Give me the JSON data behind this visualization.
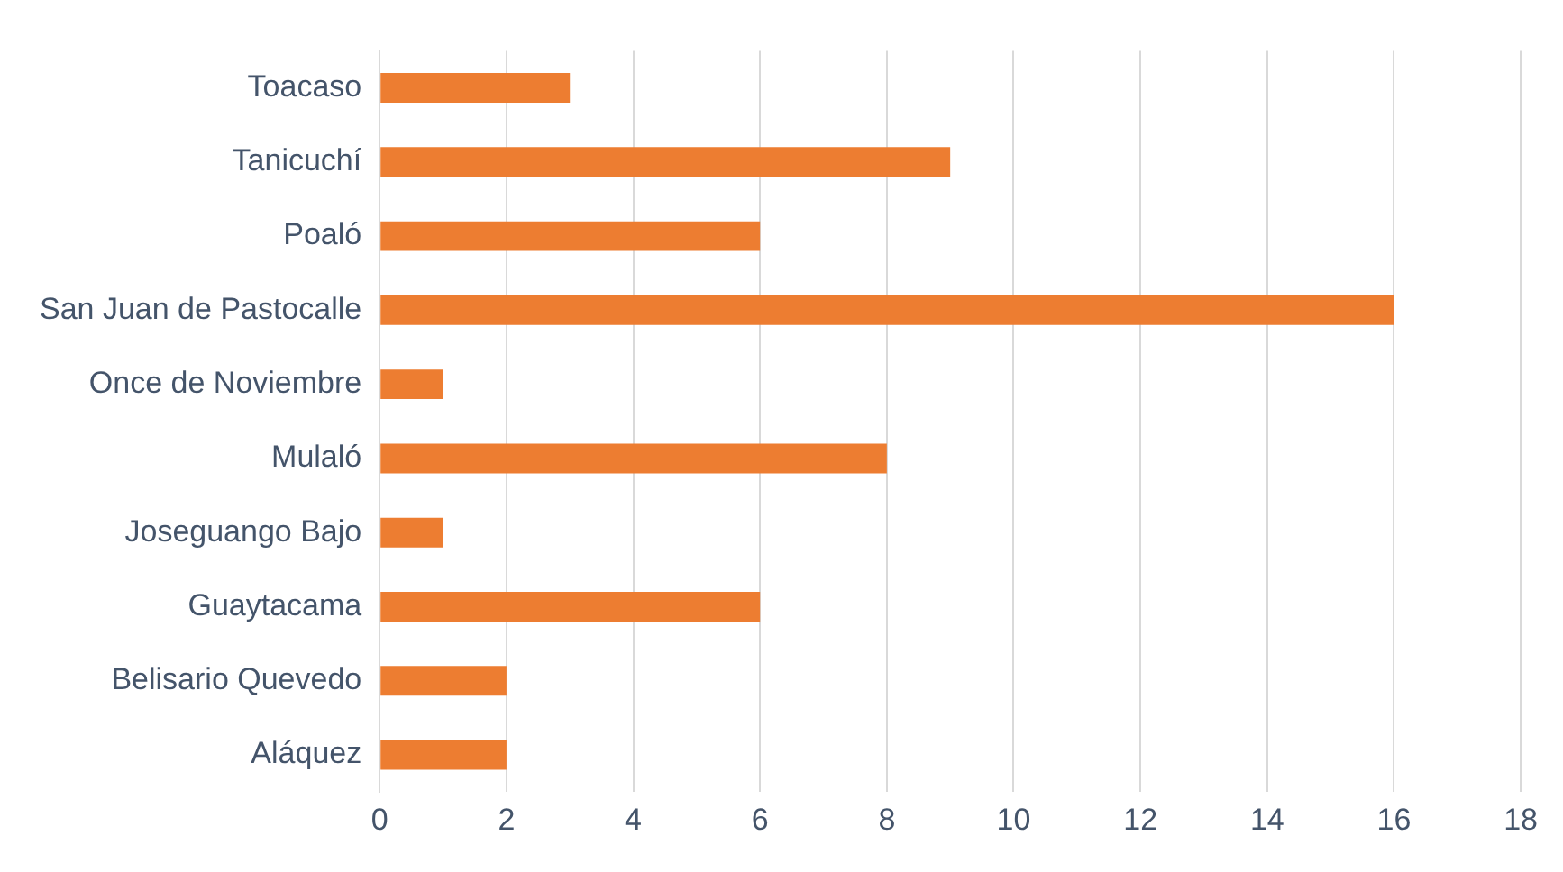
{
  "chart_data": {
    "type": "bar",
    "orientation": "horizontal",
    "categories": [
      "Toacaso",
      "Tanicuchí",
      "Poaló",
      "San Juan de Pastocalle",
      "Once de Noviembre",
      "Mulaló",
      "Joseguango Bajo",
      "Guaytacama",
      "Belisario Quevedo",
      "Aláquez"
    ],
    "values": [
      3,
      9,
      6,
      16,
      1,
      8,
      1,
      6,
      2,
      2
    ],
    "color": "#ed7d31",
    "xlim": [
      0,
      18
    ],
    "xticks": [
      0,
      2,
      4,
      6,
      8,
      10,
      12,
      14,
      16,
      18
    ],
    "grid": "x",
    "legend": false
  }
}
